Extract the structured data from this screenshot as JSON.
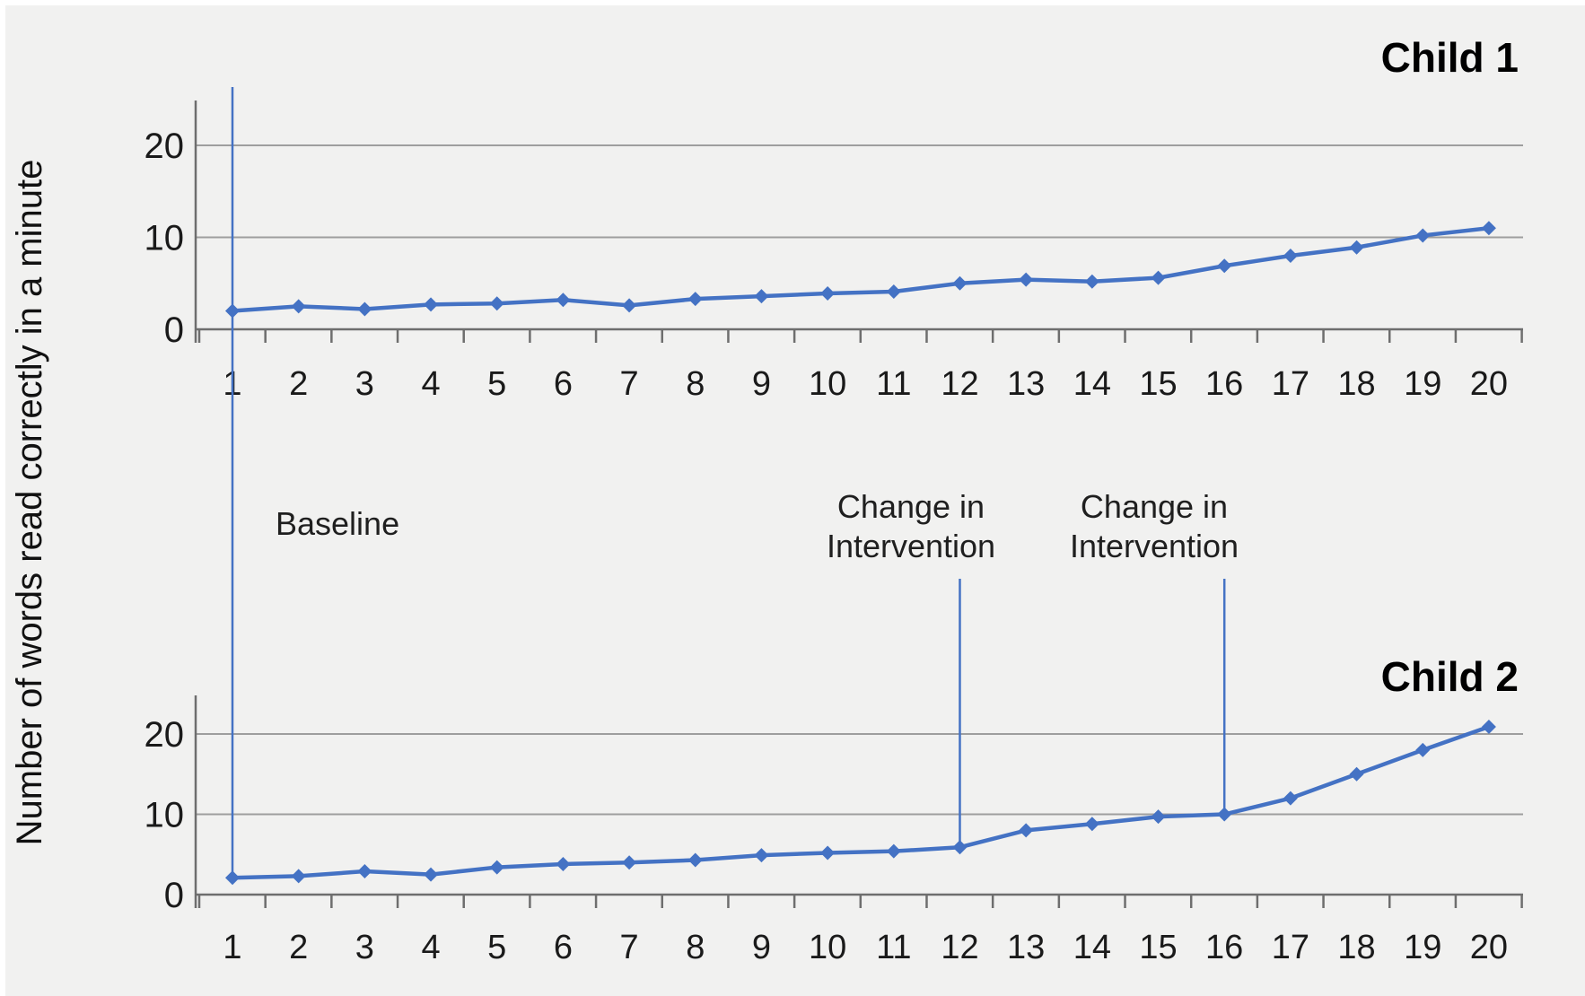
{
  "figure": {
    "y_axis_title": "Number of words read correctly  in a minute",
    "colors": {
      "background": "#f1f1f0",
      "series_blue": "#4472c4",
      "gridline_gray": "#9e9e9e",
      "axis_gray": "#6e6e6e",
      "text_black": "#1a1a1a"
    }
  },
  "chart_data": [
    {
      "type": "line",
      "name": "child1",
      "title": "Child 1",
      "xlabel": "",
      "ylabel": "Number of words read correctly  in a minute",
      "x": [
        1,
        2,
        3,
        4,
        5,
        6,
        7,
        8,
        9,
        10,
        11,
        12,
        13,
        14,
        15,
        16,
        17,
        18,
        19,
        20
      ],
      "values": [
        2,
        2.5,
        2.2,
        2.7,
        2.8,
        3.2,
        2.6,
        3.3,
        3.6,
        3.9,
        4.1,
        5,
        5.4,
        5.2,
        5.6,
        6.9,
        8,
        8.9,
        10.2,
        11
      ],
      "yticks": [
        0,
        10,
        20
      ],
      "ylim": [
        0,
        25
      ],
      "grid": true,
      "legend": "none",
      "marker": "diamond"
    },
    {
      "type": "line",
      "name": "child2",
      "title": "Child 2",
      "xlabel": "",
      "ylabel": "Number of words read correctly  in a minute",
      "x": [
        1,
        2,
        3,
        4,
        5,
        6,
        7,
        8,
        9,
        10,
        11,
        12,
        13,
        14,
        15,
        16,
        17,
        18,
        19,
        20
      ],
      "values": [
        2.1,
        2.3,
        2.9,
        2.5,
        3.4,
        3.8,
        4,
        4.3,
        4.9,
        5.2,
        5.4,
        5.9,
        8,
        8.8,
        9.7,
        10,
        12,
        15,
        18,
        20.9
      ],
      "yticks": [
        0,
        10,
        20
      ],
      "ylim": [
        0,
        25
      ],
      "grid": true,
      "legend": "none",
      "marker": "diamond"
    }
  ],
  "annotations": {
    "baseline": {
      "text": "Baseline",
      "session": 1
    },
    "interventions": [
      {
        "lines": [
          "Change in",
          "Intervention"
        ],
        "session": 12
      },
      {
        "lines": [
          "Change in",
          "Intervention"
        ],
        "session": 16
      }
    ]
  }
}
